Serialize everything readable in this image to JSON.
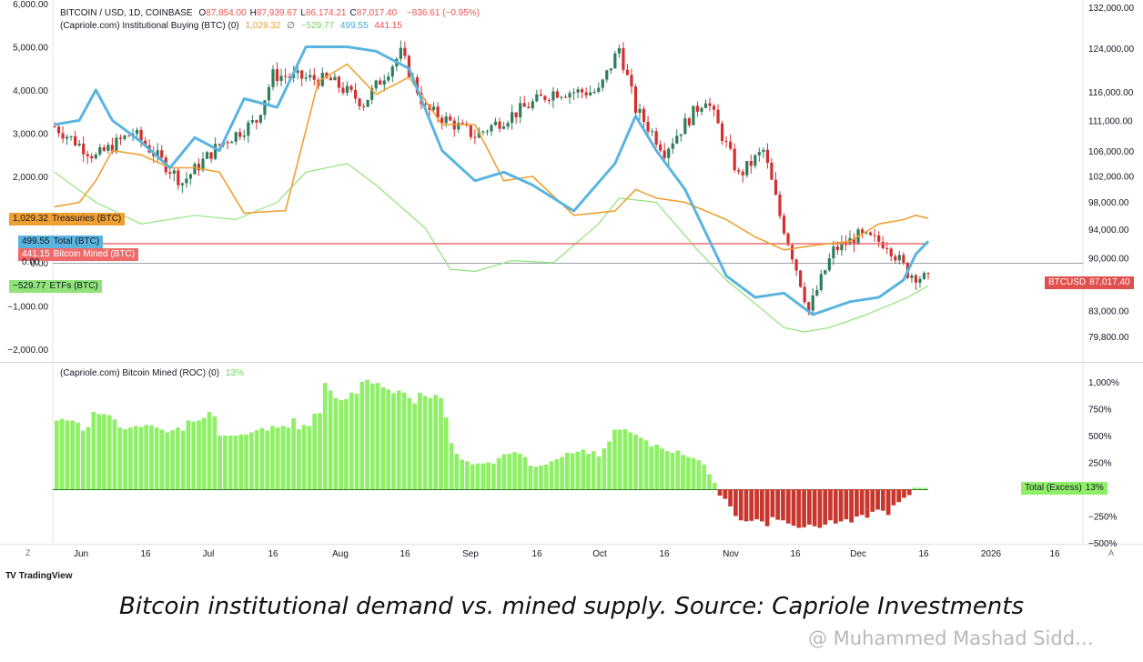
{
  "header": {
    "symbol": "BITCOIN / USD, 1D, COINBASE",
    "ohlc": [
      {
        "k": "O",
        "v": "87,854.00"
      },
      {
        "k": "H",
        "v": "87,939.67"
      },
      {
        "k": "L",
        "v": "86,174.21"
      },
      {
        "k": "C",
        "v": "87,017.40"
      }
    ],
    "change": "−836.61 (−0.95%)",
    "indicator1_name": "(Capriole.com) Institutional Buying (BTC) (0)",
    "indicator1_values": {
      "treasuries": "1,029.32",
      "sep": "∅",
      "etfs": "−529.77",
      "total": "499.55",
      "mined": "441.15"
    },
    "indicator2_name": "(Capriole.com) Bitcoin Mined (ROC) (0)",
    "indicator2_value": "13%"
  },
  "tags": {
    "treasuries": {
      "value": "1,029.32",
      "label": "Treasuries (BTC)"
    },
    "total": {
      "value": "499.55",
      "label": "Total (BTC)"
    },
    "mined": {
      "value": "441.15",
      "label": "Bitcoin Mined (BTC)"
    },
    "etfs": {
      "value": "−529.77",
      "label": "ETFs (BTC)"
    },
    "btcusd": {
      "value": "87,017.40",
      "label": "BTCUSD"
    },
    "zero": "0.00",
    "roc": {
      "value": "13%",
      "label": "Total (Excess)"
    }
  },
  "colors": {
    "up": "#26a69a",
    "down": "#ef5350",
    "candle_up": "#2e7d5b",
    "candle_down": "#d32f2f",
    "treasuries": "#f0a030",
    "total": "#5ab4e0",
    "mined": "#ef6b6b",
    "etfs": "#8fe37a",
    "roc_pos": "#8ff068",
    "roc_neg": "#c8372d"
  },
  "left_axis_ticks": [
    "6,000.00",
    "5,000.00",
    "4,000.00",
    "3,000.00",
    "2,000.00",
    "0.00",
    "−1,000.00",
    "−2,000.00"
  ],
  "right_axis_ticks": [
    "132,000.00",
    "124,000.00",
    "116,000.00",
    "111,000.00",
    "106,000.00",
    "102,000.00",
    "98,000.00",
    "94,000.00",
    "90,000.00",
    "83,000.00",
    "79,800.00"
  ],
  "roc_axis_ticks": [
    "1,000%",
    "750%",
    "500%",
    "250%",
    "−250%",
    "−500%"
  ],
  "x_axis_ticks": [
    "Jun",
    "16",
    "Jul",
    "16",
    "Aug",
    "16",
    "Sep",
    "16",
    "Oct",
    "16",
    "Nov",
    "16",
    "Dec",
    "16",
    "2026",
    "16"
  ],
  "axis_buttons": {
    "left": "Z",
    "right": "A"
  },
  "footer": {
    "brand": "TradingView",
    "logo": "TV",
    "caption": "Bitcoin institutional demand vs. mined supply. Source: Capriole Investments",
    "watermark": "@ Muhammed Mashad Sidd…"
  },
  "chart_data": [
    {
      "type": "line",
      "title": "(Capriole.com) Institutional Buying (BTC) (0)",
      "x_range": [
        "2025-05-22",
        "2025-12-20"
      ],
      "ylim": [
        -2000,
        6000
      ],
      "series": [
        {
          "name": "Treasuries (BTC)",
          "x": [
            "2025-05-22",
            "2025-05-28",
            "2025-06-01",
            "2025-06-05",
            "2025-06-12",
            "2025-06-19",
            "2025-06-25",
            "2025-07-01",
            "2025-07-07",
            "2025-07-15",
            "2025-07-17",
            "2025-07-25",
            "2025-08-01",
            "2025-08-08",
            "2025-08-16",
            "2025-08-24",
            "2025-09-01",
            "2025-09-08",
            "2025-09-15",
            "2025-09-25",
            "2025-10-05",
            "2025-10-10",
            "2025-10-15",
            "2025-10-22",
            "2025-11-01",
            "2025-11-08",
            "2025-11-15",
            "2025-11-22",
            "2025-12-01",
            "2025-12-08",
            "2025-12-14",
            "2025-12-17",
            "2025-12-20"
          ],
          "y": [
            1300,
            1400,
            1900,
            2600,
            2500,
            2200,
            2200,
            2100,
            1150,
            1200,
            1200,
            4200,
            4600,
            3900,
            4300,
            3200,
            3200,
            1900,
            2000,
            1100,
            1200,
            1700,
            1500,
            1400,
            1000,
            600,
            300,
            400,
            500,
            900,
            1000,
            1100,
            1029.32
          ]
        },
        {
          "name": "Total (BTC)",
          "x": [
            "2025-05-22",
            "2025-05-28",
            "2025-06-01",
            "2025-06-05",
            "2025-06-12",
            "2025-06-19",
            "2025-06-25",
            "2025-07-01",
            "2025-07-07",
            "2025-07-15",
            "2025-07-22",
            "2025-08-01",
            "2025-08-08",
            "2025-08-16",
            "2025-08-24",
            "2025-09-01",
            "2025-09-08",
            "2025-09-15",
            "2025-09-25",
            "2025-10-05",
            "2025-10-10",
            "2025-10-15",
            "2025-10-22",
            "2025-11-01",
            "2025-11-08",
            "2025-11-15",
            "2025-11-22",
            "2025-12-01",
            "2025-12-08",
            "2025-12-14",
            "2025-12-17",
            "2025-12-20"
          ],
          "y": [
            3200,
            3300,
            4000,
            3300,
            2800,
            2200,
            2900,
            2600,
            3800,
            3600,
            5000,
            5000,
            4900,
            4500,
            2600,
            1900,
            2100,
            1800,
            1200,
            2300,
            3400,
            2600,
            1700,
            -300,
            -800,
            -700,
            -1200,
            -900,
            -800,
            -400,
            200,
            499.55
          ]
        },
        {
          "name": "Bitcoin Mined (BTC)",
          "x": [
            "2025-05-22",
            "2025-12-20"
          ],
          "y": [
            441.15,
            441.15
          ]
        },
        {
          "name": "ETFs (BTC)",
          "x": [
            "2025-05-22",
            "2025-06-01",
            "2025-06-12",
            "2025-06-25",
            "2025-07-05",
            "2025-07-15",
            "2025-07-22",
            "2025-08-01",
            "2025-08-08",
            "2025-08-20",
            "2025-08-26",
            "2025-09-01",
            "2025-09-10",
            "2025-09-20",
            "2025-10-01",
            "2025-10-06",
            "2025-10-15",
            "2025-10-25",
            "2025-11-01",
            "2025-11-10",
            "2025-11-15",
            "2025-11-20",
            "2025-11-26",
            "2025-12-05",
            "2025-12-15",
            "2025-12-20"
          ],
          "y": [
            2100,
            1400,
            900,
            1100,
            1000,
            1400,
            2100,
            2300,
            1800,
            800,
            -150,
            -200,
            50,
            0,
            900,
            1500,
            1400,
            300,
            -400,
            -1100,
            -1500,
            -1600,
            -1500,
            -1200,
            -800,
            -529.77
          ]
        }
      ]
    },
    {
      "type": "line",
      "title": "BITCOIN / USD, 1D, COINBASE",
      "x": [
        "2025-05-22",
        "2025-06-01",
        "2025-06-10",
        "2025-06-22",
        "2025-07-01",
        "2025-07-10",
        "2025-07-14",
        "2025-07-28",
        "2025-08-05",
        "2025-08-14",
        "2025-08-20",
        "2025-09-01",
        "2025-09-10",
        "2025-09-20",
        "2025-10-01",
        "2025-10-06",
        "2025-10-10",
        "2025-10-17",
        "2025-10-27",
        "2025-11-04",
        "2025-11-10",
        "2025-11-14",
        "2025-11-21",
        "2025-11-27",
        "2025-12-03",
        "2025-12-10",
        "2025-12-15",
        "2025-12-20"
      ],
      "y": [
        110000,
        105000,
        109000,
        101000,
        107000,
        111000,
        119000,
        118000,
        114000,
        123000,
        113000,
        108500,
        112000,
        116000,
        116000,
        124000,
        113000,
        106000,
        115000,
        102000,
        106000,
        96000,
        83000,
        91000,
        93000,
        92000,
        88000,
        87017.4
      ],
      "ylim": [
        78000,
        133000
      ]
    },
    {
      "type": "bar",
      "title": "(Capriole.com) Bitcoin Mined (ROC) (0)",
      "x_range": [
        "2025-05-22",
        "2025-12-20"
      ],
      "values": [
        640,
        655,
        640,
        640,
        620,
        545,
        580,
        720,
        700,
        700,
        690,
        650,
        575,
        560,
        575,
        590,
        580,
        600,
        595,
        575,
        555,
        530,
        550,
        575,
        545,
        640,
        630,
        640,
        665,
        720,
        680,
        500,
        500,
        500,
        500,
        510,
        510,
        530,
        550,
        570,
        545,
        590,
        575,
        590,
        575,
        660,
        560,
        600,
        590,
        705,
        710,
        990,
        920,
        850,
        830,
        840,
        900,
        890,
        1000,
        1020,
        985,
        990,
        950,
        930,
        895,
        920,
        900,
        850,
        800,
        900,
        870,
        850,
        880,
        850,
        670,
        430,
        330,
        275,
        260,
        230,
        240,
        240,
        250,
        240,
        290,
        325,
        330,
        345,
        330,
        300,
        220,
        210,
        220,
        230,
        260,
        280,
        300,
        340,
        335,
        350,
        370,
        330,
        355,
        305,
        380,
        445,
        555,
        555,
        560,
        530,
        510,
        480,
        455,
        400,
        415,
        380,
        355,
        340,
        360,
        320,
        300,
        290,
        270,
        230,
        140,
        60,
        -60,
        -90,
        -160,
        -250,
        -290,
        -300,
        -295,
        -280,
        -300,
        -345,
        -260,
        -285,
        -290,
        -320,
        -340,
        -360,
        -355,
        -330,
        -345,
        -360,
        -330,
        -290,
        -320,
        -300,
        -280,
        -310,
        -255,
        -240,
        -265,
        -210,
        -190,
        -200,
        -240,
        -150,
        -120,
        -80,
        -55,
        15,
        13,
        13
      ],
      "ylim": [
        -500,
        1000
      ]
    }
  ]
}
